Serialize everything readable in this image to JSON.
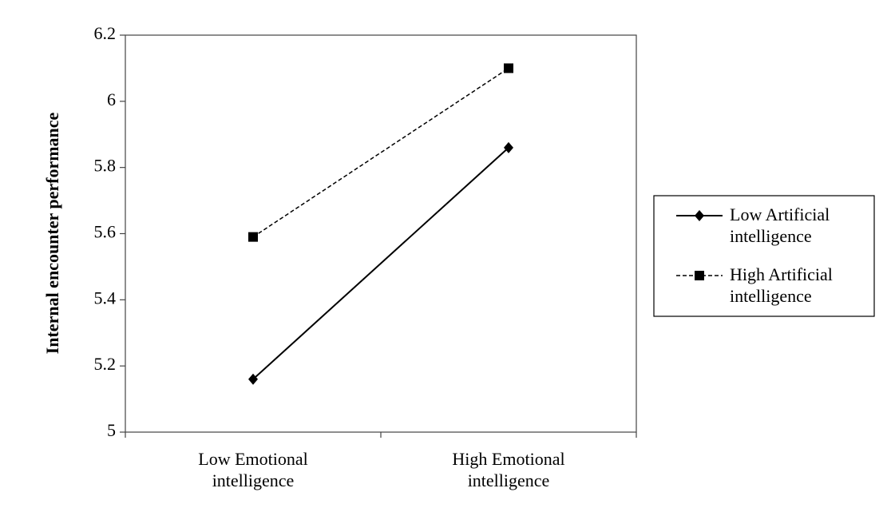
{
  "chart_data": {
    "type": "line",
    "ylabel": "Internal encounter performance",
    "categories": [
      "Low Emotional intelligence",
      "High Emotional intelligence"
    ],
    "series": [
      {
        "name": "Low Artificial intelligence",
        "color": "#000000",
        "values": [
          5.16,
          5.86
        ],
        "dash": false,
        "marker": "diamond"
      },
      {
        "name": "High Artificial intelligence",
        "color": "#000000",
        "values": [
          5.59,
          6.1
        ],
        "dash": true,
        "marker": "square"
      }
    ],
    "ylim": [
      5,
      6.2
    ],
    "yticks": [
      5,
      5.2,
      5.4,
      5.6,
      5.8,
      6,
      6.2
    ],
    "grid": false,
    "legend": "right"
  }
}
